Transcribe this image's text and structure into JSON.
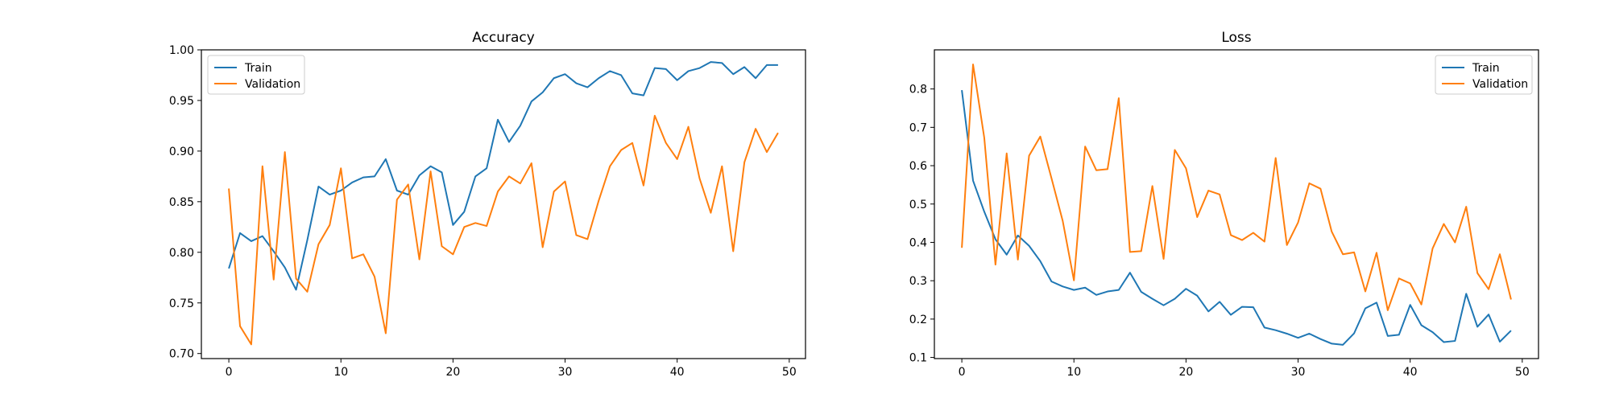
{
  "chart_data": [
    {
      "type": "line",
      "title": "Accuracy",
      "xlabel": "",
      "ylabel": "",
      "xlim": [
        -2.45,
        51.45
      ],
      "ylim": [
        0.695,
        1.0
      ],
      "xticks": [
        0,
        10,
        20,
        30,
        40,
        50
      ],
      "xtick_labels": [
        "0",
        "10",
        "20",
        "30",
        "40",
        "50"
      ],
      "yticks": [
        0.7,
        0.75,
        0.8,
        0.85,
        0.9,
        0.95,
        1.0
      ],
      "ytick_labels": [
        "0.70",
        "0.75",
        "0.80",
        "0.85",
        "0.90",
        "0.95",
        "1.00"
      ],
      "legend_position": "upper-left",
      "grid": false,
      "x": [
        0,
        1,
        2,
        3,
        4,
        5,
        6,
        7,
        8,
        9,
        10,
        11,
        12,
        13,
        14,
        15,
        16,
        17,
        18,
        19,
        20,
        21,
        22,
        23,
        24,
        25,
        26,
        27,
        28,
        29,
        30,
        31,
        32,
        33,
        34,
        35,
        36,
        37,
        38,
        39,
        40,
        41,
        42,
        43,
        44,
        45,
        46,
        47,
        48,
        49
      ],
      "series": [
        {
          "name": "Train",
          "color": "#1f77b4",
          "values": [
            0.784,
            0.819,
            0.811,
            0.816,
            0.801,
            0.785,
            0.763,
            0.812,
            0.865,
            0.857,
            0.861,
            0.869,
            0.874,
            0.875,
            0.892,
            0.861,
            0.857,
            0.876,
            0.885,
            0.879,
            0.827,
            0.84,
            0.875,
            0.883,
            0.931,
            0.909,
            0.925,
            0.949,
            0.958,
            0.972,
            0.976,
            0.967,
            0.963,
            0.972,
            0.979,
            0.975,
            0.957,
            0.955,
            0.982,
            0.981,
            0.97,
            0.979,
            0.982,
            0.988,
            0.987,
            0.976,
            0.983,
            0.972,
            0.985,
            0.985
          ]
        },
        {
          "name": "Validation",
          "color": "#ff7f0e",
          "values": [
            0.863,
            0.727,
            0.709,
            0.885,
            0.773,
            0.899,
            0.774,
            0.761,
            0.808,
            0.827,
            0.883,
            0.794,
            0.798,
            0.776,
            0.72,
            0.852,
            0.867,
            0.793,
            0.88,
            0.806,
            0.798,
            0.825,
            0.829,
            0.826,
            0.86,
            0.875,
            0.868,
            0.888,
            0.805,
            0.86,
            0.87,
            0.817,
            0.813,
            0.851,
            0.885,
            0.901,
            0.908,
            0.866,
            0.935,
            0.908,
            0.892,
            0.924,
            0.873,
            0.839,
            0.885,
            0.801,
            0.889,
            0.922,
            0.899,
            0.918
          ]
        }
      ]
    },
    {
      "type": "line",
      "title": "Loss",
      "xlabel": "",
      "ylabel": "",
      "xlim": [
        -2.45,
        51.45
      ],
      "ylim": [
        0.097,
        0.902
      ],
      "xticks": [
        0,
        10,
        20,
        30,
        40,
        50
      ],
      "xtick_labels": [
        "0",
        "10",
        "20",
        "30",
        "40",
        "50"
      ],
      "yticks": [
        0.1,
        0.2,
        0.3,
        0.4,
        0.5,
        0.6,
        0.7,
        0.8
      ],
      "ytick_labels": [
        "0.1",
        "0.2",
        "0.3",
        "0.4",
        "0.5",
        "0.6",
        "0.7",
        "0.8"
      ],
      "legend_position": "upper-right",
      "grid": false,
      "x": [
        0,
        1,
        2,
        3,
        4,
        5,
        6,
        7,
        8,
        9,
        10,
        11,
        12,
        13,
        14,
        15,
        16,
        17,
        18,
        19,
        20,
        21,
        22,
        23,
        24,
        25,
        26,
        27,
        28,
        29,
        30,
        31,
        32,
        33,
        34,
        35,
        36,
        37,
        38,
        39,
        40,
        41,
        42,
        43,
        44,
        45,
        46,
        47,
        48,
        49
      ],
      "series": [
        {
          "name": "Train",
          "color": "#1f77b4",
          "values": [
            0.797,
            0.561,
            0.48,
            0.408,
            0.368,
            0.418,
            0.391,
            0.351,
            0.298,
            0.285,
            0.276,
            0.282,
            0.263,
            0.272,
            0.276,
            0.321,
            0.271,
            0.253,
            0.236,
            0.253,
            0.279,
            0.261,
            0.22,
            0.245,
            0.211,
            0.232,
            0.231,
            0.178,
            0.171,
            0.162,
            0.151,
            0.162,
            0.148,
            0.136,
            0.133,
            0.163,
            0.228,
            0.243,
            0.156,
            0.159,
            0.237,
            0.184,
            0.166,
            0.14,
            0.143,
            0.266,
            0.18,
            0.212,
            0.141,
            0.17
          ]
        },
        {
          "name": "Validation",
          "color": "#ff7f0e",
          "values": [
            0.386,
            0.864,
            0.673,
            0.342,
            0.632,
            0.355,
            0.626,
            0.676,
            0.567,
            0.456,
            0.301,
            0.65,
            0.588,
            0.591,
            0.776,
            0.375,
            0.377,
            0.547,
            0.357,
            0.641,
            0.593,
            0.466,
            0.535,
            0.525,
            0.419,
            0.406,
            0.425,
            0.402,
            0.62,
            0.393,
            0.452,
            0.554,
            0.54,
            0.428,
            0.369,
            0.374,
            0.272,
            0.373,
            0.223,
            0.306,
            0.293,
            0.238,
            0.384,
            0.448,
            0.4,
            0.493,
            0.32,
            0.278,
            0.369,
            0.251
          ]
        }
      ]
    }
  ]
}
